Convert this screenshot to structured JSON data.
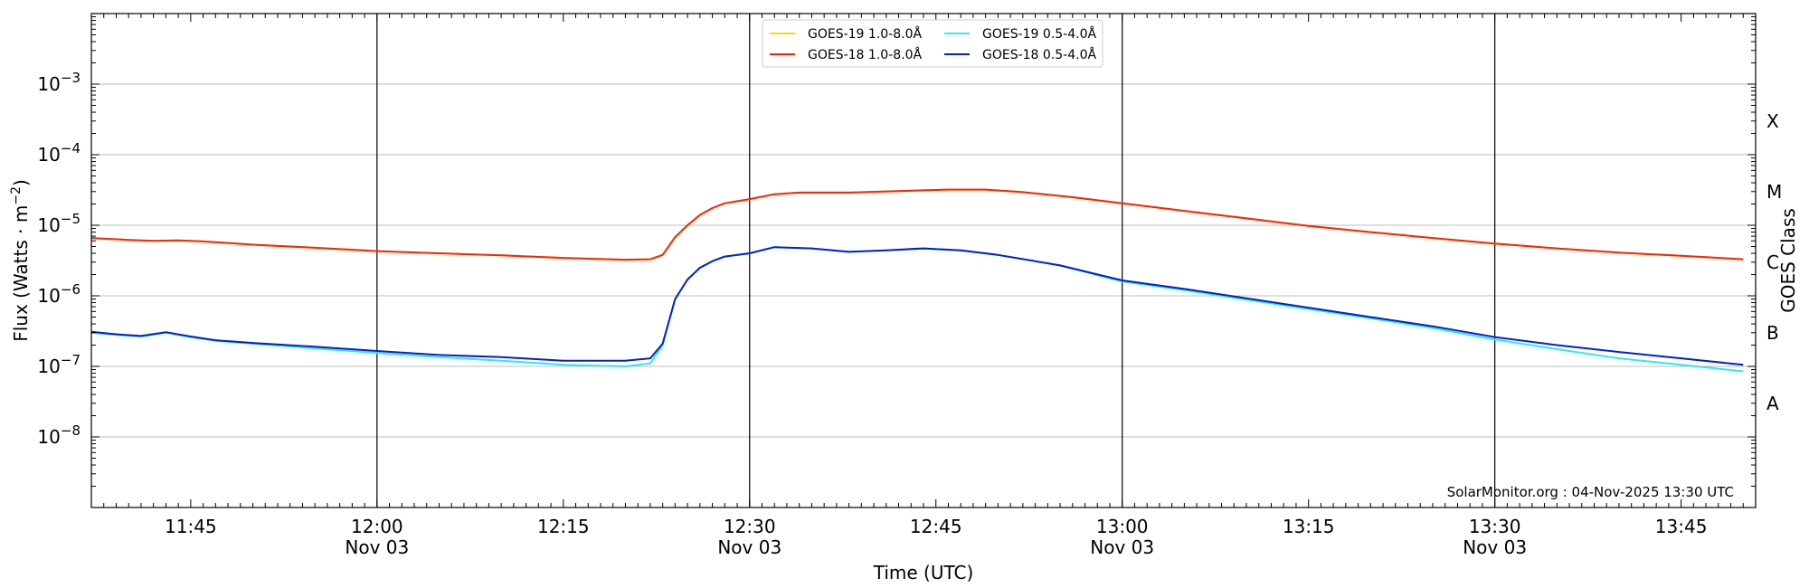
{
  "chart_data": {
    "type": "line",
    "title": "",
    "xlabel": "Time (UTC)",
    "ylabel": "Flux (Watts · m",
    "ylabel_sup": "−2",
    "ylabel_close": ")",
    "y2label": "GOES Class",
    "y_scale": "log",
    "ylim": [
      1e-09,
      0.01
    ],
    "y_ticks": [
      {
        "value": 1e-08,
        "base": "10",
        "exp": "−8"
      },
      {
        "value": 1e-07,
        "base": "10",
        "exp": "−7"
      },
      {
        "value": 1e-06,
        "base": "10",
        "exp": "−6"
      },
      {
        "value": 1e-05,
        "base": "10",
        "exp": "−5"
      },
      {
        "value": 0.0001,
        "base": "10",
        "exp": "−4"
      },
      {
        "value": 0.001,
        "base": "10",
        "exp": "−3"
      }
    ],
    "xlim": [
      "11:37",
      "13:51"
    ],
    "x_ticks": [
      {
        "time": "11:45",
        "label": "11:45",
        "sub": ""
      },
      {
        "time": "12:00",
        "label": "12:00",
        "sub": "Nov 03"
      },
      {
        "time": "12:15",
        "label": "12:15",
        "sub": ""
      },
      {
        "time": "12:30",
        "label": "12:30",
        "sub": "Nov 03"
      },
      {
        "time": "12:45",
        "label": "12:45",
        "sub": ""
      },
      {
        "time": "13:00",
        "label": "13:00",
        "sub": "Nov 03"
      },
      {
        "time": "13:15",
        "label": "13:15",
        "sub": ""
      },
      {
        "time": "13:30",
        "label": "13:30",
        "sub": "Nov 03"
      },
      {
        "time": "13:45",
        "label": "13:45",
        "sub": ""
      }
    ],
    "grid": true,
    "vertical_lines": [
      "12:00",
      "12:30",
      "13:00",
      "13:30"
    ],
    "goes_classes": [
      {
        "label": "A",
        "value": 3e-08
      },
      {
        "label": "B",
        "value": 3e-07
      },
      {
        "label": "C",
        "value": 3e-06
      },
      {
        "label": "M",
        "value": 3e-05
      },
      {
        "label": "X",
        "value": 0.0003
      }
    ],
    "legend_placement": "top-center",
    "annotation": "SolarMonitor.org : 04-Nov-2025 13:30 UTC",
    "series": [
      {
        "name": "GOES-19 1.0-8.0Å",
        "color": "#ffd700",
        "points": [
          [
            "11:37",
            6.6e-06
          ],
          [
            "11:40",
            6.2e-06
          ],
          [
            "11:42",
            6e-06
          ],
          [
            "11:44",
            6.1e-06
          ],
          [
            "11:46",
            5.9e-06
          ],
          [
            "11:48",
            5.6e-06
          ],
          [
            "11:50",
            5.3e-06
          ],
          [
            "11:55",
            4.8e-06
          ],
          [
            "12:00",
            4.3e-06
          ],
          [
            "12:05",
            4e-06
          ],
          [
            "12:10",
            3.75e-06
          ],
          [
            "12:15",
            3.45e-06
          ],
          [
            "12:20",
            3.25e-06
          ],
          [
            "12:22",
            3.3e-06
          ],
          [
            "12:23",
            3.8e-06
          ],
          [
            "12:24",
            6.8e-06
          ],
          [
            "12:25",
            1e-05
          ],
          [
            "12:26",
            1.4e-05
          ],
          [
            "12:27",
            1.75e-05
          ],
          [
            "12:28",
            2.05e-05
          ],
          [
            "12:30",
            2.35e-05
          ],
          [
            "12:32",
            2.75e-05
          ],
          [
            "12:34",
            2.9e-05
          ],
          [
            "12:38",
            2.9e-05
          ],
          [
            "12:42",
            3.05e-05
          ],
          [
            "12:46",
            3.2e-05
          ],
          [
            "12:49",
            3.2e-05
          ],
          [
            "12:52",
            2.95e-05
          ],
          [
            "12:56",
            2.5e-05
          ],
          [
            "13:00",
            2.05e-05
          ],
          [
            "13:05",
            1.6e-05
          ],
          [
            "13:10",
            1.25e-05
          ],
          [
            "13:15",
            9.8e-06
          ],
          [
            "13:20",
            8e-06
          ],
          [
            "13:25",
            6.6e-06
          ],
          [
            "13:30",
            5.5e-06
          ],
          [
            "13:35",
            4.7e-06
          ],
          [
            "13:40",
            4.1e-06
          ],
          [
            "13:45",
            3.7e-06
          ],
          [
            "13:50",
            3.3e-06
          ]
        ]
      },
      {
        "name": "GOES-18 1.0-8.0Å",
        "color": "#ff2200",
        "points": [
          [
            "11:37",
            6.6e-06
          ],
          [
            "11:40",
            6.2e-06
          ],
          [
            "11:42",
            6e-06
          ],
          [
            "11:44",
            6.1e-06
          ],
          [
            "11:46",
            5.9e-06
          ],
          [
            "11:48",
            5.6e-06
          ],
          [
            "11:50",
            5.3e-06
          ],
          [
            "11:55",
            4.8e-06
          ],
          [
            "12:00",
            4.3e-06
          ],
          [
            "12:05",
            4e-06
          ],
          [
            "12:10",
            3.75e-06
          ],
          [
            "12:15",
            3.45e-06
          ],
          [
            "12:20",
            3.25e-06
          ],
          [
            "12:22",
            3.3e-06
          ],
          [
            "12:23",
            3.8e-06
          ],
          [
            "12:24",
            6.8e-06
          ],
          [
            "12:25",
            1e-05
          ],
          [
            "12:26",
            1.4e-05
          ],
          [
            "12:27",
            1.75e-05
          ],
          [
            "12:28",
            2.05e-05
          ],
          [
            "12:30",
            2.35e-05
          ],
          [
            "12:32",
            2.75e-05
          ],
          [
            "12:34",
            2.9e-05
          ],
          [
            "12:38",
            2.9e-05
          ],
          [
            "12:42",
            3.05e-05
          ],
          [
            "12:46",
            3.2e-05
          ],
          [
            "12:49",
            3.2e-05
          ],
          [
            "12:52",
            2.95e-05
          ],
          [
            "12:56",
            2.5e-05
          ],
          [
            "13:00",
            2.05e-05
          ],
          [
            "13:05",
            1.6e-05
          ],
          [
            "13:10",
            1.25e-05
          ],
          [
            "13:15",
            9.8e-06
          ],
          [
            "13:20",
            8e-06
          ],
          [
            "13:25",
            6.6e-06
          ],
          [
            "13:30",
            5.5e-06
          ],
          [
            "13:35",
            4.7e-06
          ],
          [
            "13:40",
            4.1e-06
          ],
          [
            "13:45",
            3.7e-06
          ],
          [
            "13:50",
            3.3e-06
          ]
        ]
      },
      {
        "name": "GOES-19 0.5-4.0Å",
        "color": "#33e6f0",
        "points": [
          [
            "11:37",
            3e-07
          ],
          [
            "11:39",
            2.8e-07
          ],
          [
            "11:41",
            2.65e-07
          ],
          [
            "11:43",
            3e-07
          ],
          [
            "11:45",
            2.6e-07
          ],
          [
            "11:47",
            2.3e-07
          ],
          [
            "11:50",
            2.1e-07
          ],
          [
            "11:55",
            1.8e-07
          ],
          [
            "12:00",
            1.55e-07
          ],
          [
            "12:05",
            1.35e-07
          ],
          [
            "12:10",
            1.2e-07
          ],
          [
            "12:15",
            1.05e-07
          ],
          [
            "12:20",
            1e-07
          ],
          [
            "12:22",
            1.1e-07
          ],
          [
            "12:23",
            2e-07
          ],
          [
            "12:24",
            9e-07
          ],
          [
            "12:25",
            1.7e-06
          ],
          [
            "12:26",
            2.5e-06
          ],
          [
            "12:27",
            3.1e-06
          ],
          [
            "12:28",
            3.6e-06
          ],
          [
            "12:30",
            4e-06
          ],
          [
            "12:32",
            4.9e-06
          ],
          [
            "12:35",
            4.7e-06
          ],
          [
            "12:38",
            4.2e-06
          ],
          [
            "12:41",
            4.4e-06
          ],
          [
            "12:44",
            4.7e-06
          ],
          [
            "12:47",
            4.4e-06
          ],
          [
            "12:50",
            3.8e-06
          ],
          [
            "12:55",
            2.7e-06
          ],
          [
            "13:00",
            1.6e-06
          ],
          [
            "13:05",
            1.2e-06
          ],
          [
            "13:10",
            8.8e-07
          ],
          [
            "13:15",
            6.5e-07
          ],
          [
            "13:20",
            4.8e-07
          ],
          [
            "13:25",
            3.5e-07
          ],
          [
            "13:30",
            2.4e-07
          ],
          [
            "13:35",
            1.75e-07
          ],
          [
            "13:40",
            1.3e-07
          ],
          [
            "13:45",
            1.05e-07
          ],
          [
            "13:50",
            8.5e-08
          ]
        ]
      },
      {
        "name": "GOES-18 0.5-4.0Å",
        "color": "#0022cc",
        "points": [
          [
            "11:37",
            3.1e-07
          ],
          [
            "11:39",
            2.85e-07
          ],
          [
            "11:41",
            2.7e-07
          ],
          [
            "11:43",
            3.05e-07
          ],
          [
            "11:45",
            2.65e-07
          ],
          [
            "11:47",
            2.35e-07
          ],
          [
            "11:50",
            2.15e-07
          ],
          [
            "11:55",
            1.9e-07
          ],
          [
            "12:00",
            1.65e-07
          ],
          [
            "12:05",
            1.45e-07
          ],
          [
            "12:10",
            1.35e-07
          ],
          [
            "12:15",
            1.2e-07
          ],
          [
            "12:20",
            1.2e-07
          ],
          [
            "12:22",
            1.3e-07
          ],
          [
            "12:23",
            2.1e-07
          ],
          [
            "12:24",
            9e-07
          ],
          [
            "12:25",
            1.7e-06
          ],
          [
            "12:26",
            2.5e-06
          ],
          [
            "12:27",
            3.1e-06
          ],
          [
            "12:28",
            3.6e-06
          ],
          [
            "12:30",
            4e-06
          ],
          [
            "12:32",
            4.9e-06
          ],
          [
            "12:35",
            4.7e-06
          ],
          [
            "12:38",
            4.2e-06
          ],
          [
            "12:41",
            4.4e-06
          ],
          [
            "12:44",
            4.7e-06
          ],
          [
            "12:47",
            4.4e-06
          ],
          [
            "12:50",
            3.8e-06
          ],
          [
            "12:55",
            2.7e-06
          ],
          [
            "13:00",
            1.65e-06
          ],
          [
            "13:05",
            1.25e-06
          ],
          [
            "13:10",
            9.2e-07
          ],
          [
            "13:15",
            6.8e-07
          ],
          [
            "13:20",
            5e-07
          ],
          [
            "13:25",
            3.7e-07
          ],
          [
            "13:30",
            2.6e-07
          ],
          [
            "13:35",
            2e-07
          ],
          [
            "13:40",
            1.6e-07
          ],
          [
            "13:45",
            1.3e-07
          ],
          [
            "13:50",
            1.05e-07
          ]
        ]
      }
    ]
  }
}
